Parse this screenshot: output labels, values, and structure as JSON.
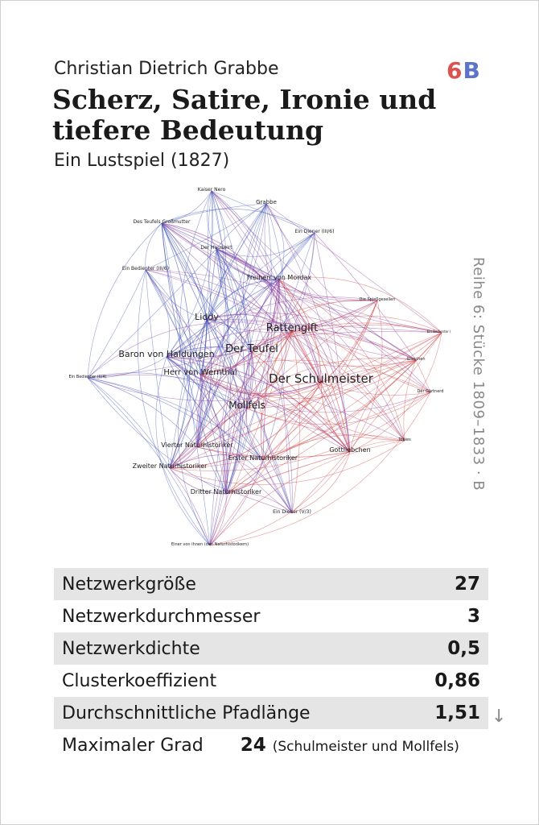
{
  "header": {
    "author": "Christian Dietrich Grabbe",
    "title": "Scherz, Satire, Ironie und tiefere Bedeutung",
    "subtitle": "Ein Lustspiel (1827)",
    "badge_number": "6",
    "badge_letter": "B",
    "series": "Reihe 6: Stücke 1809–1833 · B"
  },
  "network": {
    "nodes": [
      "Kaiser Nero",
      "Grabbe",
      "Des Teufels Großmutter",
      "Ein Diener (III/6)",
      "Der Hauswirt",
      "Ein Bedienter (III/6)",
      "Freiherr von Mordax",
      "Die Spießgesellen",
      "Liddy",
      "Rattengift",
      "Ein Bedienter (I/3)",
      "Der Teufel",
      "Baron von Haldungen",
      "Gretchen",
      "Herr von Wernthal",
      "Der Schulmeister",
      "Ein Bedienter (II/4)",
      "Der Gärtnerd",
      "Mollfels",
      "Tobies",
      "Vierter Naturhistoriker",
      "Gottliebchen",
      "Erster Naturhistoriker",
      "Zweiter Naturhistoriker",
      "Dritter Naturhistoriker",
      "Ein Diener (V/3)",
      "Einer von ihnen (den Naturhistorikern)"
    ]
  },
  "stats": {
    "size_label": "Netzwerkgröße",
    "size_value": "27",
    "diameter_label": "Netzwerkdurchmesser",
    "diameter_value": "3",
    "density_label": "Netzwerkdichte",
    "density_value": "0,5",
    "cluster_label": "Clusterkoeffizient",
    "cluster_value": "0,86",
    "path_label": "Durchschnittliche Pfadlänge",
    "path_value": "1,51",
    "degree_label": "Maximaler Grad",
    "degree_value": "24",
    "degree_note": "(Schulmeister und Mollfels)",
    "arrow": "↓"
  },
  "colors": {
    "blue": "#3a4fb8",
    "red": "#d23a3a",
    "purple": "#8a3a9a"
  }
}
